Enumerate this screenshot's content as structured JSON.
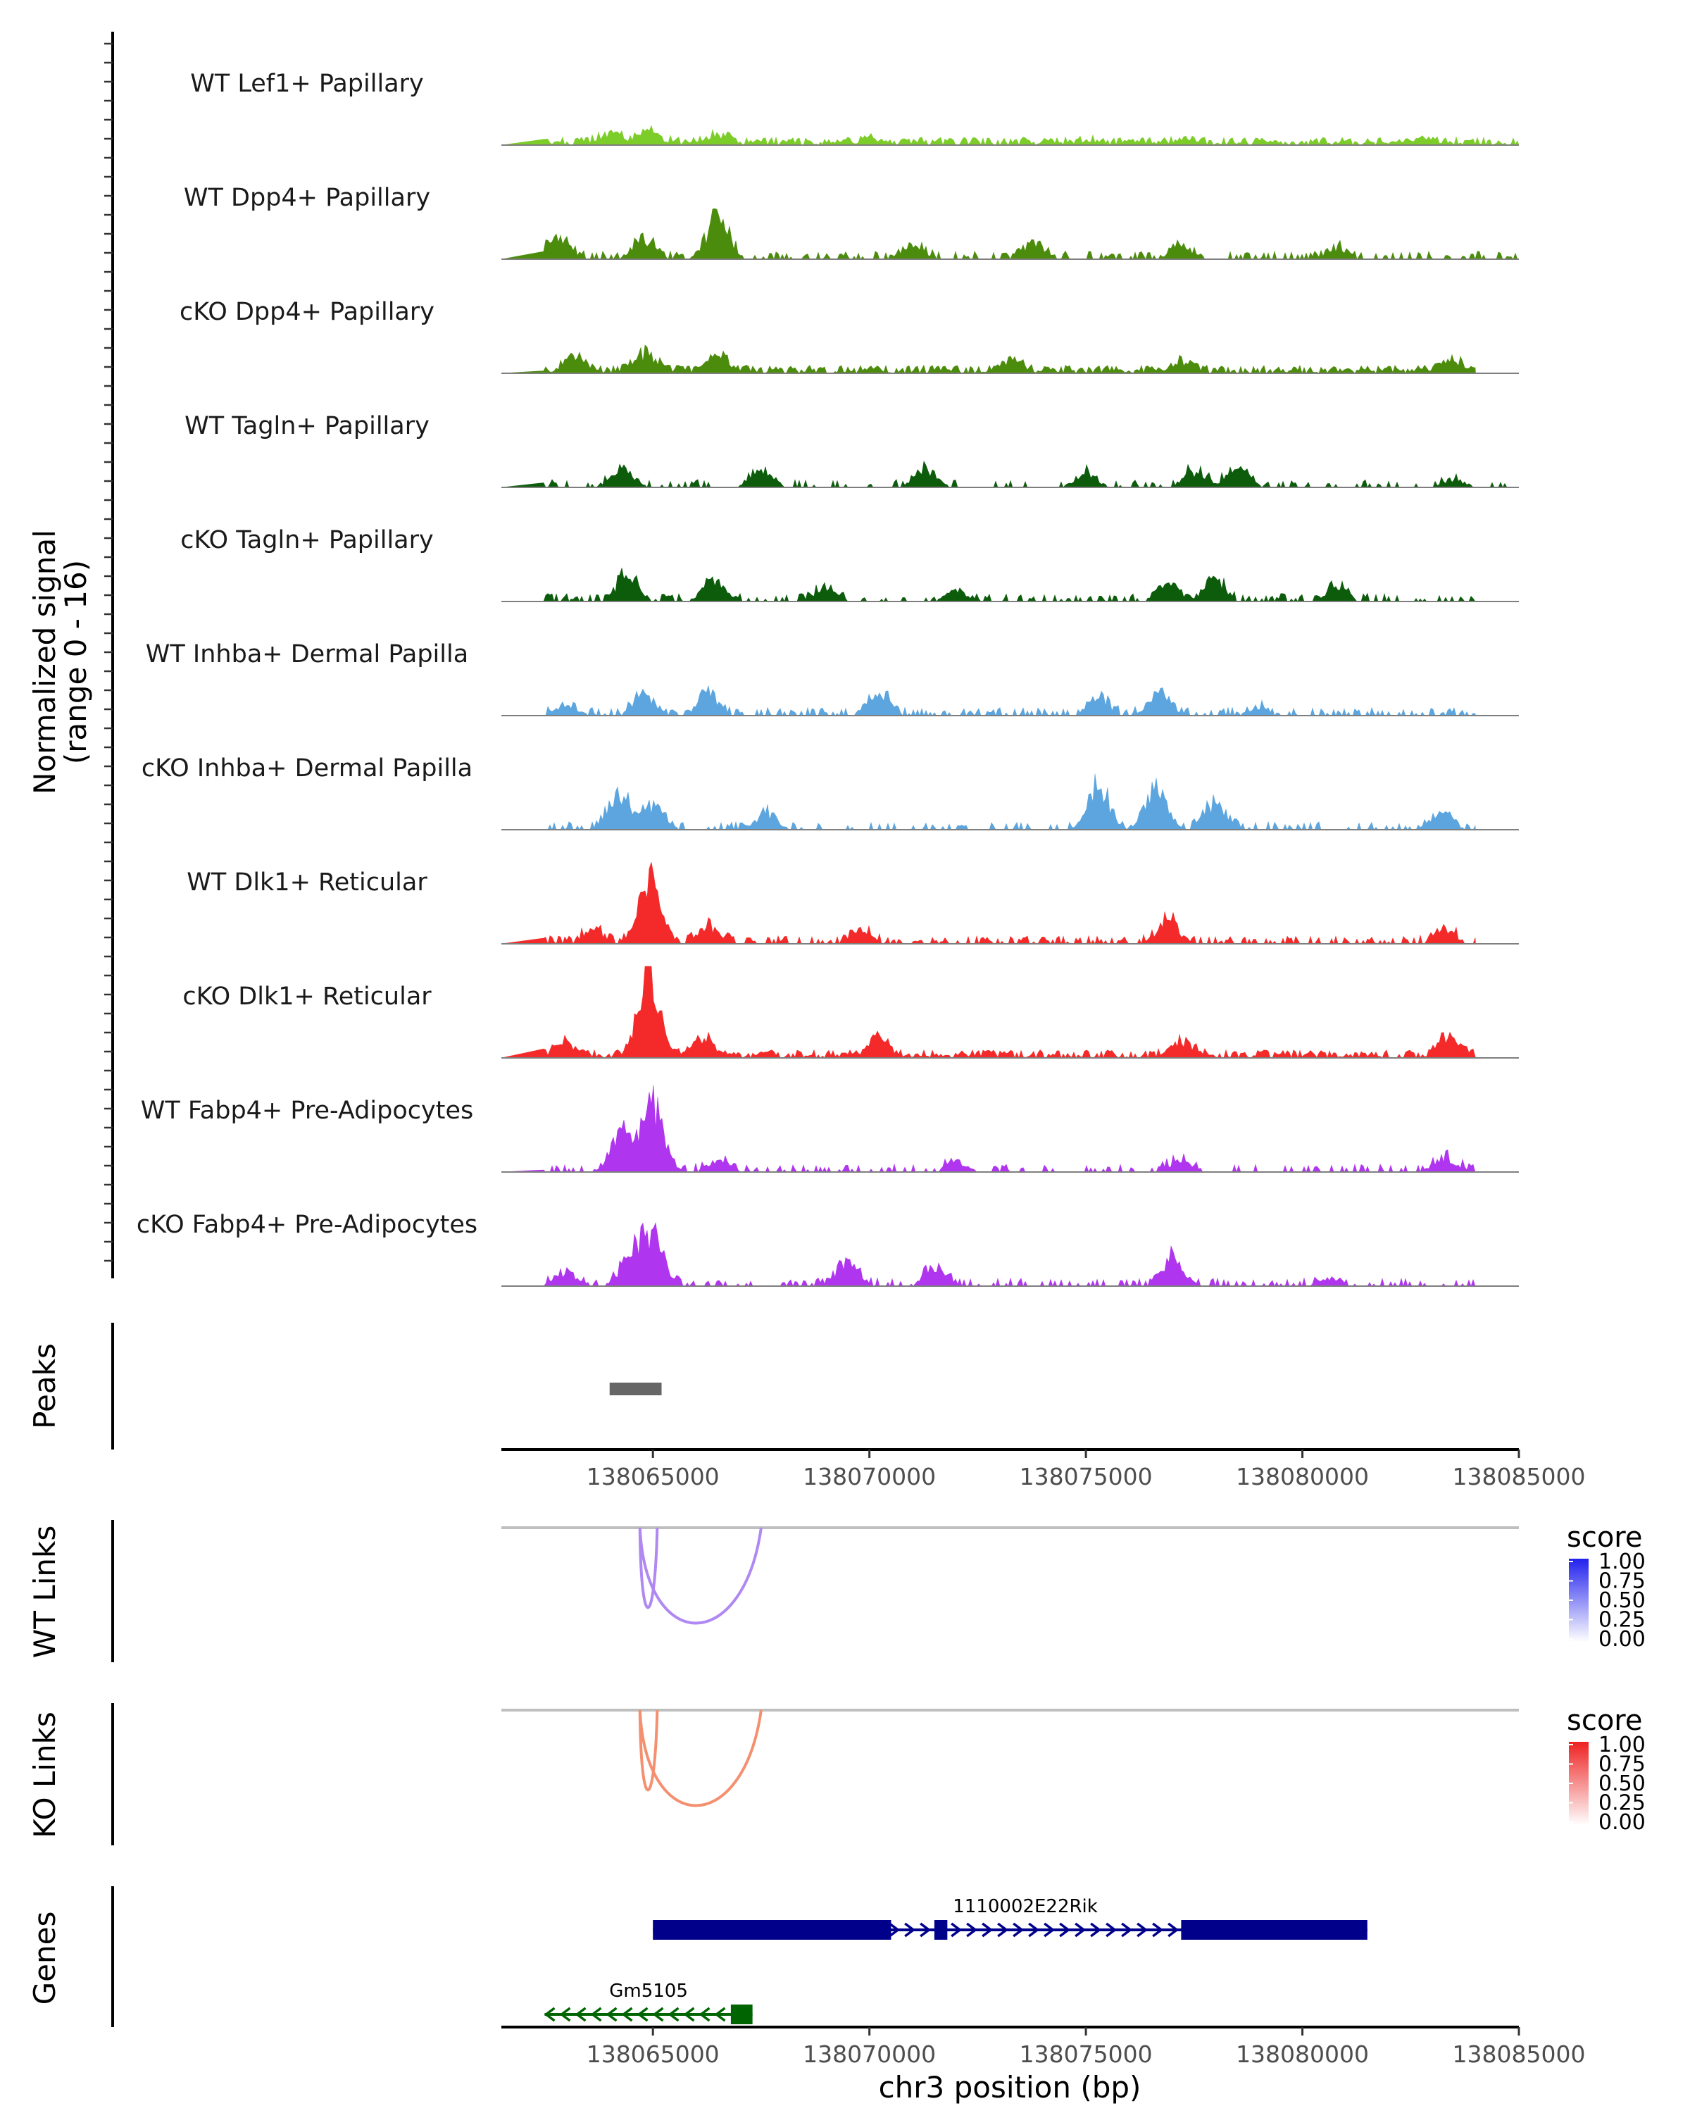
{
  "chart_data": {
    "type": "genome_coverage",
    "chromosome": "chr3",
    "region": [
      138061500,
      138085000
    ],
    "x_ticks": [
      138065000,
      138070000,
      138075000,
      138080000,
      138085000
    ],
    "x_tick_labels": [
      "138065000",
      "138070000",
      "138075000",
      "138080000",
      "138085000"
    ],
    "xlabel": "chr3 position (bp)",
    "coverage_ylabel_line1": "Normalized signal",
    "coverage_ylabel_line2": "(range 0 - 16)",
    "y_range": [
      0,
      16
    ],
    "tracks": [
      {
        "name": "WT Lef1+ Papillary",
        "color": "#7CCD29",
        "sparse": false,
        "density": 0.9,
        "end": 138085000,
        "peaks": [
          [
            138064000,
            1.8
          ],
          [
            138064900,
            2.2
          ],
          [
            138066500,
            1.6
          ],
          [
            138070000,
            0.8
          ],
          [
            138075000,
            0.6
          ],
          [
            138077200,
            0.6
          ],
          [
            138083000,
            0.5
          ]
        ]
      },
      {
        "name": "WT Dpp4+ Papillary",
        "color": "#4C8C0C",
        "sparse": true,
        "density": 0.55,
        "end": 138085000,
        "peaks": [
          [
            138062800,
            4.5
          ],
          [
            138064800,
            4.0
          ],
          [
            138066500,
            8.0
          ],
          [
            138071000,
            2.5
          ],
          [
            138073800,
            3.0
          ],
          [
            138077200,
            2.5
          ],
          [
            138080800,
            1.8
          ]
        ]
      },
      {
        "name": "cKO Dpp4+ Papillary",
        "color": "#4C8C0C",
        "sparse": false,
        "density": 0.9,
        "end": 138084000,
        "peaks": [
          [
            138063200,
            3.0
          ],
          [
            138064800,
            3.6
          ],
          [
            138066500,
            3.2
          ],
          [
            138073300,
            2.2
          ],
          [
            138077200,
            2.0
          ],
          [
            138083500,
            1.8
          ]
        ]
      },
      {
        "name": "WT Tagln+ Papillary",
        "color": "#0C5C0C",
        "sparse": true,
        "density": 0.3,
        "end": 138085000,
        "peaks": [
          [
            138064300,
            4.0
          ],
          [
            138067500,
            4.0
          ],
          [
            138071300,
            3.5
          ],
          [
            138075000,
            2.5
          ],
          [
            138077500,
            3.0
          ],
          [
            138078500,
            3.5
          ],
          [
            138083500,
            1.5
          ]
        ]
      },
      {
        "name": "cKO Tagln+ Papillary",
        "color": "#0C5C0C",
        "sparse": true,
        "density": 0.5,
        "end": 138084000,
        "peaks": [
          [
            138064400,
            5.0
          ],
          [
            138066400,
            4.0
          ],
          [
            138069000,
            2.5
          ],
          [
            138072000,
            2.0
          ],
          [
            138076900,
            3.5
          ],
          [
            138078000,
            4.0
          ],
          [
            138080800,
            3.0
          ]
        ]
      },
      {
        "name": "WT Inhba+ Dermal Papilla",
        "color": "#5CA5DE",
        "sparse": true,
        "density": 0.55,
        "end": 138084000,
        "peaks": [
          [
            138063000,
            2.0
          ],
          [
            138064800,
            3.6
          ],
          [
            138066300,
            4.0
          ],
          [
            138070200,
            4.5
          ],
          [
            138075300,
            3.0
          ],
          [
            138076700,
            4.5
          ],
          [
            138079000,
            1.5
          ]
        ]
      },
      {
        "name": "cKO Inhba+ Dermal Papilla",
        "color": "#5CA5DE",
        "sparse": true,
        "density": 0.4,
        "end": 138084000,
        "peaks": [
          [
            138064200,
            7.0
          ],
          [
            138065000,
            4.5
          ],
          [
            138067600,
            3.0
          ],
          [
            138075300,
            8.5
          ],
          [
            138076600,
            8.0
          ],
          [
            138078000,
            5.5
          ],
          [
            138083200,
            3.5
          ]
        ]
      },
      {
        "name": "WT Dlk1+ Reticular",
        "color": "#F42A2A",
        "sparse": true,
        "density": 0.6,
        "end": 138084000,
        "peaks": [
          [
            138063600,
            2.5
          ],
          [
            138064900,
            13.0
          ],
          [
            138066300,
            3.0
          ],
          [
            138069800,
            2.5
          ],
          [
            138076900,
            4.5
          ],
          [
            138083300,
            2.5
          ]
        ]
      },
      {
        "name": "cKO Dlk1+ Reticular",
        "color": "#F42A2A",
        "sparse": false,
        "density": 0.85,
        "end": 138084000,
        "peaks": [
          [
            138063000,
            2.5
          ],
          [
            138064900,
            15.0
          ],
          [
            138066200,
            3.5
          ],
          [
            138070200,
            3.5
          ],
          [
            138077200,
            3.0
          ],
          [
            138083400,
            3.5
          ]
        ]
      },
      {
        "name": "WT Fabp4+ Pre-Adipocytes",
        "color": "#B035EE",
        "sparse": true,
        "density": 0.35,
        "end": 138084000,
        "peaks": [
          [
            138064300,
            8.0
          ],
          [
            138065000,
            12.0
          ],
          [
            138066500,
            2.5
          ],
          [
            138072000,
            2.0
          ],
          [
            138077200,
            2.5
          ],
          [
            138083300,
            3.0
          ]
        ]
      },
      {
        "name": "cKO Fabp4+ Pre-Adipocytes",
        "color": "#B035EE",
        "sparse": true,
        "density": 0.5,
        "end": 138084000,
        "peaks": [
          [
            138063000,
            2.5
          ],
          [
            138064500,
            6.0
          ],
          [
            138065000,
            10.0
          ],
          [
            138069500,
            5.0
          ],
          [
            138071500,
            3.5
          ],
          [
            138077000,
            5.5
          ],
          [
            138080600,
            1.5
          ]
        ]
      }
    ],
    "peaks_track": {
      "label": "Peaks",
      "color": "#666666",
      "intervals": [
        [
          138064000,
          138065200
        ]
      ]
    },
    "link_tracks": [
      {
        "label": "WT Links",
        "color": "#B088F2",
        "links": [
          [
            138064700,
            138065100,
            0.5
          ],
          [
            138064700,
            138067500,
            0.5
          ]
        ],
        "legend": {
          "title": "score",
          "ticks": [
            "1.00",
            "0.75",
            "0.50",
            "0.25",
            "0.00"
          ],
          "high": "#2222EE",
          "low": "#FFFFFF"
        }
      },
      {
        "label": "KO Links",
        "color": "#F49070",
        "links": [
          [
            138064700,
            138065100,
            0.5
          ],
          [
            138064700,
            138067500,
            0.5
          ]
        ],
        "legend": {
          "title": "score",
          "ticks": [
            "1.00",
            "0.75",
            "0.50",
            "0.25",
            "0.00"
          ],
          "high": "#EE2222",
          "low": "#FFFFFF"
        }
      }
    ],
    "genes_track": {
      "label": "Genes",
      "genes": [
        {
          "name": "1110002E22Rik",
          "strand": "+",
          "start": 138065000,
          "end": 138081500,
          "color": "#00008B",
          "exons": [
            [
              138065000,
              138070500
            ],
            [
              138071500,
              138071800
            ],
            [
              138077200,
              138081500
            ]
          ]
        },
        {
          "name": "Gm5105",
          "strand": "-",
          "start": 138062500,
          "end": 138067300,
          "color": "#006400",
          "exons": [
            [
              138066800,
              138067300
            ]
          ]
        }
      ]
    }
  }
}
